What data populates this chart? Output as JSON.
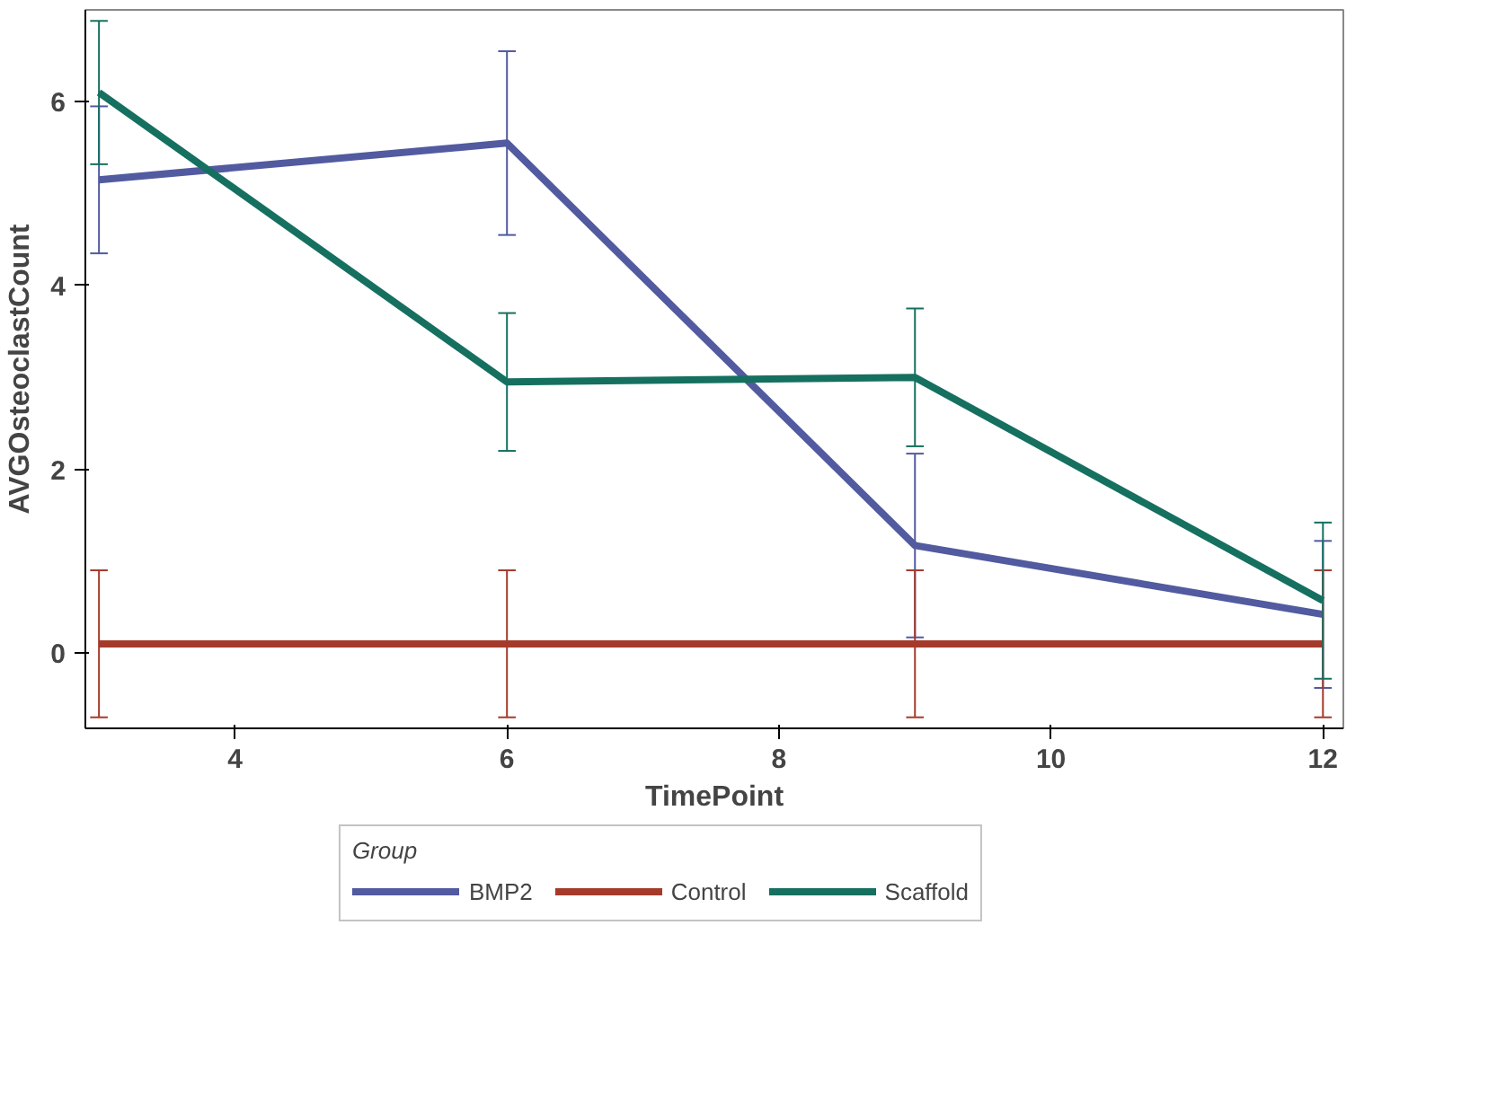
{
  "chart_data": {
    "type": "line",
    "xlabel": "TimePoint",
    "ylabel": "AVGOsteoclastCount",
    "legend_title": "Group",
    "x": [
      3,
      6,
      9,
      12
    ],
    "series": [
      {
        "name": "BMP2",
        "color": "#525aa0",
        "values": [
          5.15,
          5.55,
          1.17,
          0.42
        ],
        "errors": [
          0.8,
          1.0,
          1.0,
          0.8
        ]
      },
      {
        "name": "Control",
        "color": "#a53a2b",
        "values": [
          0.1,
          0.1,
          0.1,
          0.1
        ],
        "errors": [
          0.8,
          0.8,
          0.8,
          0.8
        ]
      },
      {
        "name": "Scaffold",
        "color": "#15705f",
        "values": [
          6.1,
          2.95,
          3.0,
          0.57
        ],
        "errors": [
          0.78,
          0.75,
          0.75,
          0.85
        ]
      }
    ],
    "xlim": [
      2.9,
      12.15
    ],
    "ylim": [
      -0.82,
      7.0
    ],
    "xticks": [
      4,
      6,
      8,
      10,
      12
    ],
    "yticks": [
      0,
      2,
      4,
      6
    ],
    "grid": false,
    "legend": "bottom",
    "marker": "none",
    "line_style": "solid"
  }
}
